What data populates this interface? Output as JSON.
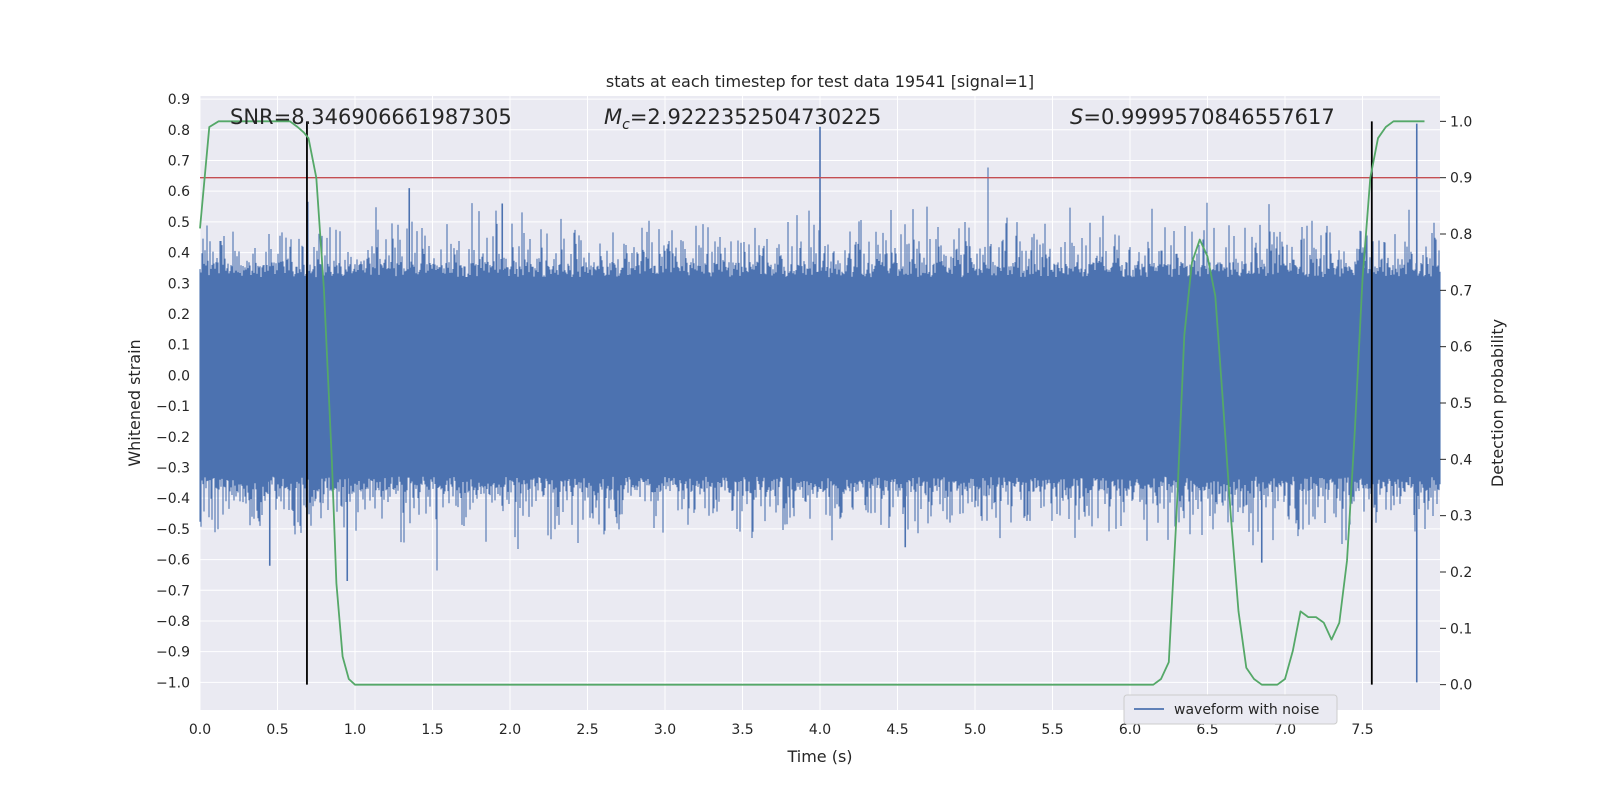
{
  "chart_data": {
    "type": "line",
    "title": "stats at each timestep for test data 19541 [signal=1]",
    "xlabel": "Time (s)",
    "ylabel": "Whitened strain",
    "y2label": "Detection probability",
    "xlim": [
      0.0,
      8.0
    ],
    "ylim": [
      -1.09,
      0.91
    ],
    "y2lim": [
      -0.045,
      1.045
    ],
    "x_ticks": [
      "0.0",
      "0.5",
      "1.0",
      "1.5",
      "2.0",
      "2.5",
      "3.0",
      "3.5",
      "4.0",
      "4.5",
      "5.0",
      "5.5",
      "6.0",
      "6.5",
      "7.0",
      "7.5"
    ],
    "y_ticks": [
      "0.9",
      "0.8",
      "0.7",
      "0.6",
      "0.5",
      "0.4",
      "0.3",
      "0.2",
      "0.1",
      "0.0",
      "−0.1",
      "−0.2",
      "−0.3",
      "−0.4",
      "−0.5",
      "−0.6",
      "−0.7",
      "−0.8",
      "−0.9",
      "−1.0"
    ],
    "y2_ticks": [
      "1.0",
      "0.9",
      "0.8",
      "0.7",
      "0.6",
      "0.5",
      "0.4",
      "0.3",
      "0.2",
      "0.1",
      "0.0"
    ],
    "grid": true,
    "legend_position": "lower right",
    "annotations": {
      "snr": "SNR=8.346906661987305",
      "mc_symbol": "M",
      "mc_sub": "c",
      "mc_value": "=2.9222352504730225",
      "s_symbol": "S",
      "s_value": "=0.9999570846557617"
    },
    "threshold_line": {
      "probability": 0.9,
      "color": "#c44e52"
    },
    "vertical_markers": [
      0.69,
      7.56
    ],
    "series": [
      {
        "name": "waveform with noise",
        "color": "#4c72b0",
        "axis": "left",
        "typical_band": [
          -0.33,
          0.32
        ],
        "peaks": [
          {
            "x": 0.45,
            "y": -0.62
          },
          {
            "x": 0.95,
            "y": -0.67
          },
          {
            "x": 1.35,
            "y": 0.61
          },
          {
            "x": 1.95,
            "y": 0.56
          },
          {
            "x": 4.0,
            "y": 0.81
          },
          {
            "x": 4.55,
            "y": -0.56
          },
          {
            "x": 6.85,
            "y": -0.61
          },
          {
            "x": 7.85,
            "y": 0.82
          },
          {
            "x": 7.85,
            "y": -1.0
          }
        ]
      },
      {
        "name": "",
        "color": "#55a868",
        "axis": "right",
        "x": [
          0.0,
          0.06,
          0.12,
          0.2,
          0.3,
          0.4,
          0.5,
          0.58,
          0.63,
          0.67,
          0.7,
          0.75,
          0.8,
          0.85,
          0.88,
          0.92,
          0.96,
          1.0,
          1.05,
          1.1,
          1.2,
          1.3,
          1.4,
          1.5,
          1.7,
          2.0,
          2.5,
          3.0,
          3.5,
          4.0,
          4.5,
          5.0,
          5.5,
          5.8,
          6.0,
          6.1,
          6.15,
          6.2,
          6.25,
          6.3,
          6.35,
          6.4,
          6.45,
          6.5,
          6.55,
          6.6,
          6.65,
          6.7,
          6.75,
          6.8,
          6.85,
          6.9,
          6.95,
          7.0,
          7.05,
          7.1,
          7.15,
          7.2,
          7.25,
          7.3,
          7.35,
          7.4,
          7.45,
          7.5,
          7.55,
          7.6,
          7.65,
          7.7,
          7.75,
          7.8,
          7.9
        ],
        "y": [
          0.81,
          0.99,
          1.0,
          1.0,
          1.0,
          1.0,
          1.0,
          1.0,
          0.99,
          0.98,
          0.97,
          0.9,
          0.7,
          0.4,
          0.18,
          0.05,
          0.01,
          0.0,
          0.0,
          0.0,
          0.0,
          0.0,
          0.0,
          0.0,
          0.0,
          0.0,
          0.0,
          0.0,
          0.0,
          0.0,
          0.0,
          0.0,
          0.0,
          0.0,
          0.0,
          0.0,
          0.0,
          0.01,
          0.04,
          0.3,
          0.62,
          0.75,
          0.79,
          0.76,
          0.69,
          0.5,
          0.3,
          0.13,
          0.03,
          0.01,
          0.0,
          0.0,
          0.0,
          0.01,
          0.06,
          0.13,
          0.12,
          0.12,
          0.11,
          0.08,
          0.11,
          0.22,
          0.45,
          0.72,
          0.9,
          0.97,
          0.99,
          1.0,
          1.0,
          1.0,
          1.0
        ]
      }
    ]
  }
}
